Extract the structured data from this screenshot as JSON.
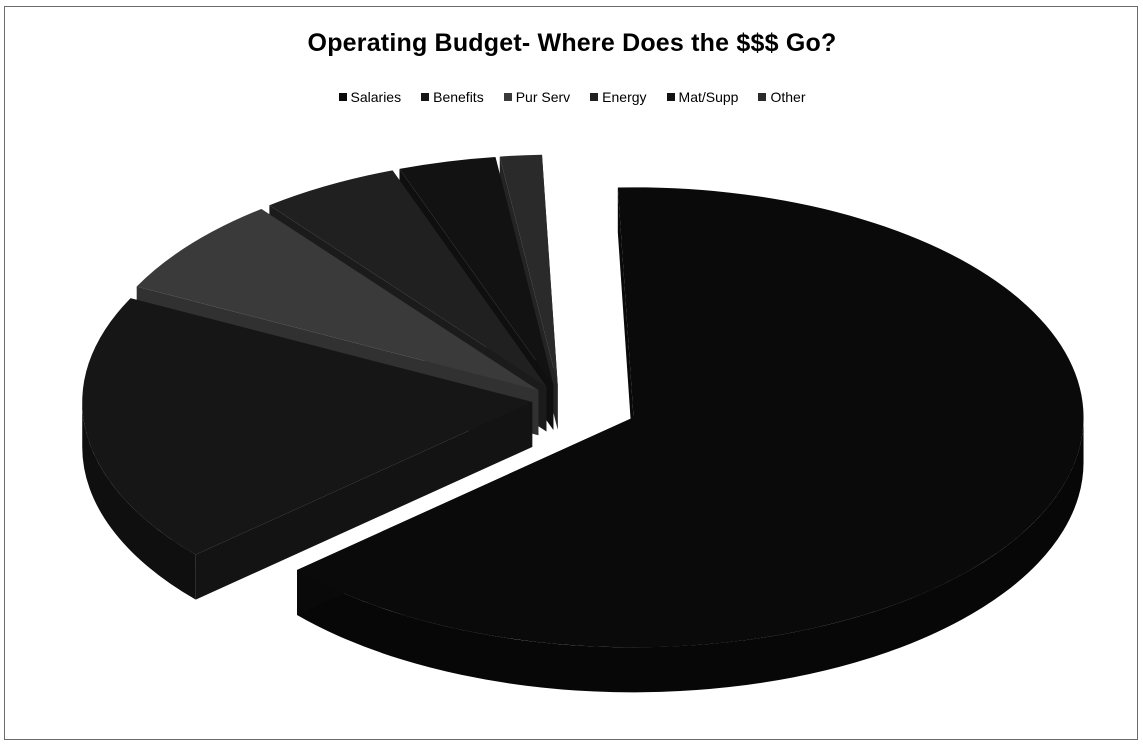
{
  "chart_data": {
    "type": "pie",
    "title": "Operating Budget- Where Does the $$$ Go?",
    "style": "3d-exploded",
    "legend_position": "top",
    "categories": [
      "Salaries",
      "Benefits",
      "Pur Serv",
      "Energy",
      "Mat/Supp",
      "Other"
    ],
    "values": [
      64.0,
      19.0,
      7.0,
      5.0,
      3.5,
      1.5
    ],
    "value_unit": "percent",
    "colors": [
      "#0a0a0a",
      "#161616",
      "#3a3a3a",
      "#202020",
      "#121212",
      "#2a2a2a"
    ],
    "exploded_category": "Salaries"
  }
}
